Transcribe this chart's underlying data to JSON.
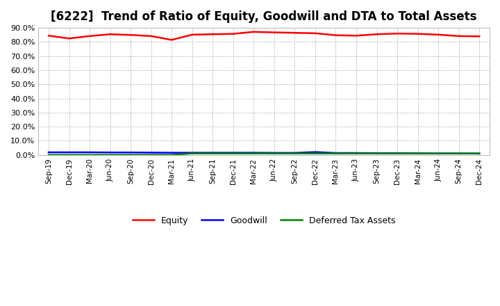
{
  "title": "[6222]  Trend of Ratio of Equity, Goodwill and DTA to Total Assets",
  "x_labels": [
    "Sep-19",
    "Dec-19",
    "Mar-20",
    "Jun-20",
    "Sep-20",
    "Dec-20",
    "Mar-21",
    "Jun-21",
    "Sep-21",
    "Dec-21",
    "Mar-22",
    "Jun-22",
    "Sep-22",
    "Dec-22",
    "Mar-23",
    "Jun-23",
    "Sep-23",
    "Dec-23",
    "Mar-24",
    "Jun-24",
    "Sep-24",
    "Dec-24"
  ],
  "equity": [
    84.5,
    82.5,
    84.2,
    85.5,
    85.0,
    84.2,
    81.5,
    85.2,
    85.5,
    85.8,
    87.2,
    86.8,
    86.5,
    86.2,
    84.8,
    84.5,
    85.5,
    86.0,
    85.8,
    85.2,
    84.2,
    84.0
  ],
  "goodwill": [
    1.8,
    1.8,
    1.8,
    1.7,
    1.7,
    1.6,
    1.5,
    1.5,
    1.5,
    1.5,
    1.5,
    1.4,
    1.4,
    2.0,
    1.3,
    1.3,
    1.2,
    1.2,
    1.1,
    1.0,
    1.0,
    0.9
  ],
  "dta": [
    0.0,
    0.0,
    0.0,
    0.0,
    0.0,
    0.0,
    0.0,
    1.0,
    1.0,
    1.0,
    1.0,
    1.0,
    1.0,
    1.0,
    1.0,
    1.0,
    1.0,
    1.0,
    1.0,
    1.0,
    1.0,
    1.0
  ],
  "equity_color": "#FF0000",
  "goodwill_color": "#0000FF",
  "dta_color": "#008000",
  "bg_color": "#FFFFFF",
  "plot_bg_color": "#FFFFFF",
  "grid_color": "#999999",
  "ylim": [
    0,
    90
  ],
  "ytick_step": 10,
  "title_fontsize": 12,
  "legend_labels": [
    "Equity",
    "Goodwill",
    "Deferred Tax Assets"
  ]
}
